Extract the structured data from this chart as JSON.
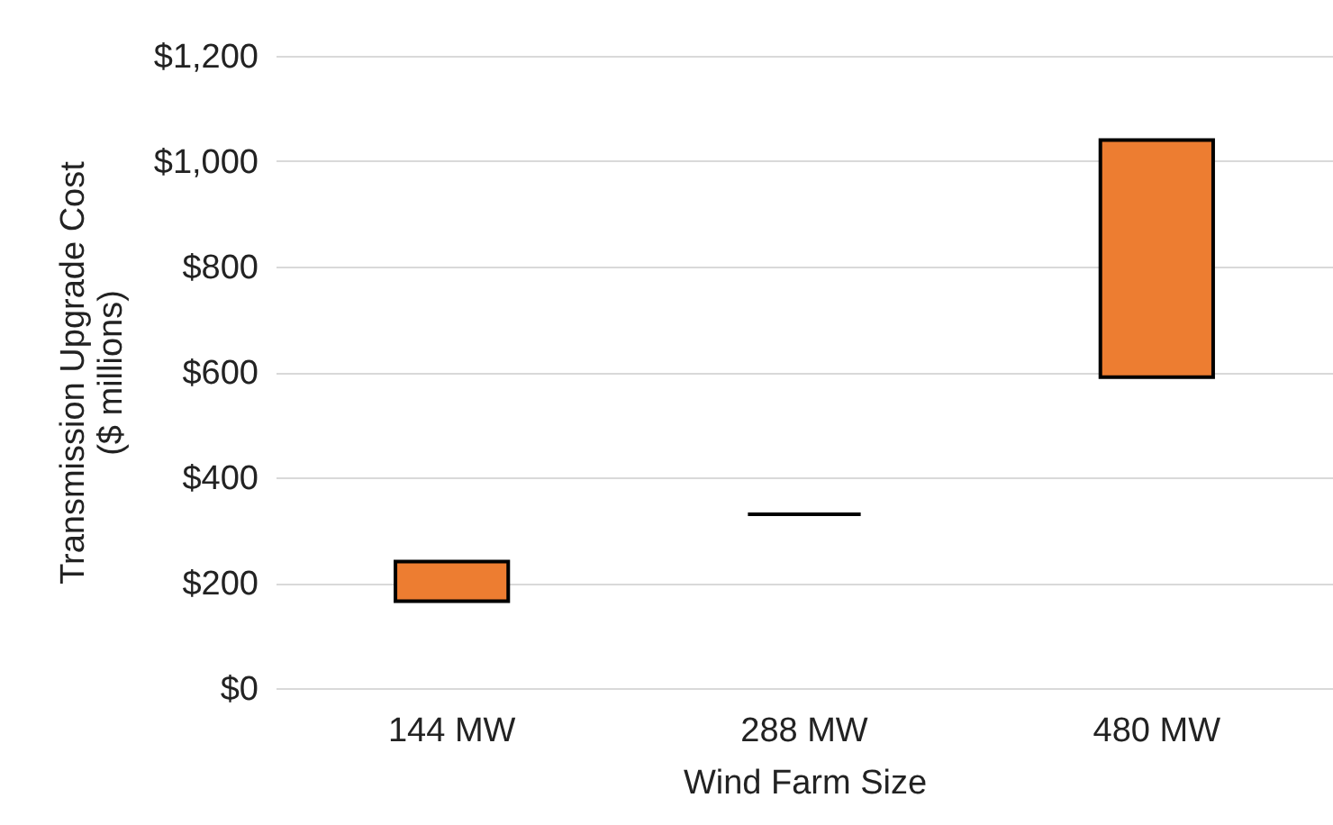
{
  "chart_data": {
    "type": "bar",
    "xlabel": "Wind Farm Size",
    "ylabel": "Transmission Upgrade Cost\n($ millions)",
    "categories": [
      "144 MW",
      "288 MW",
      "480 MW"
    ],
    "values": [
      75,
      0,
      450
    ],
    "base": [
      165,
      330,
      590
    ],
    "colors": [
      "#ed7d31",
      "#000000",
      "#ed7d31"
    ],
    "ylim": [
      0,
      1200
    ],
    "yticks": [
      {
        "value": 0,
        "label": "$0"
      },
      {
        "value": 200,
        "label": "$200"
      },
      {
        "value": 400,
        "label": "$400"
      },
      {
        "value": 600,
        "label": "$600"
      },
      {
        "value": 800,
        "label": "$800"
      },
      {
        "value": 1000,
        "label": "$1,000"
      },
      {
        "value": 1200,
        "label": "$1,200"
      }
    ],
    "grid": "y"
  }
}
